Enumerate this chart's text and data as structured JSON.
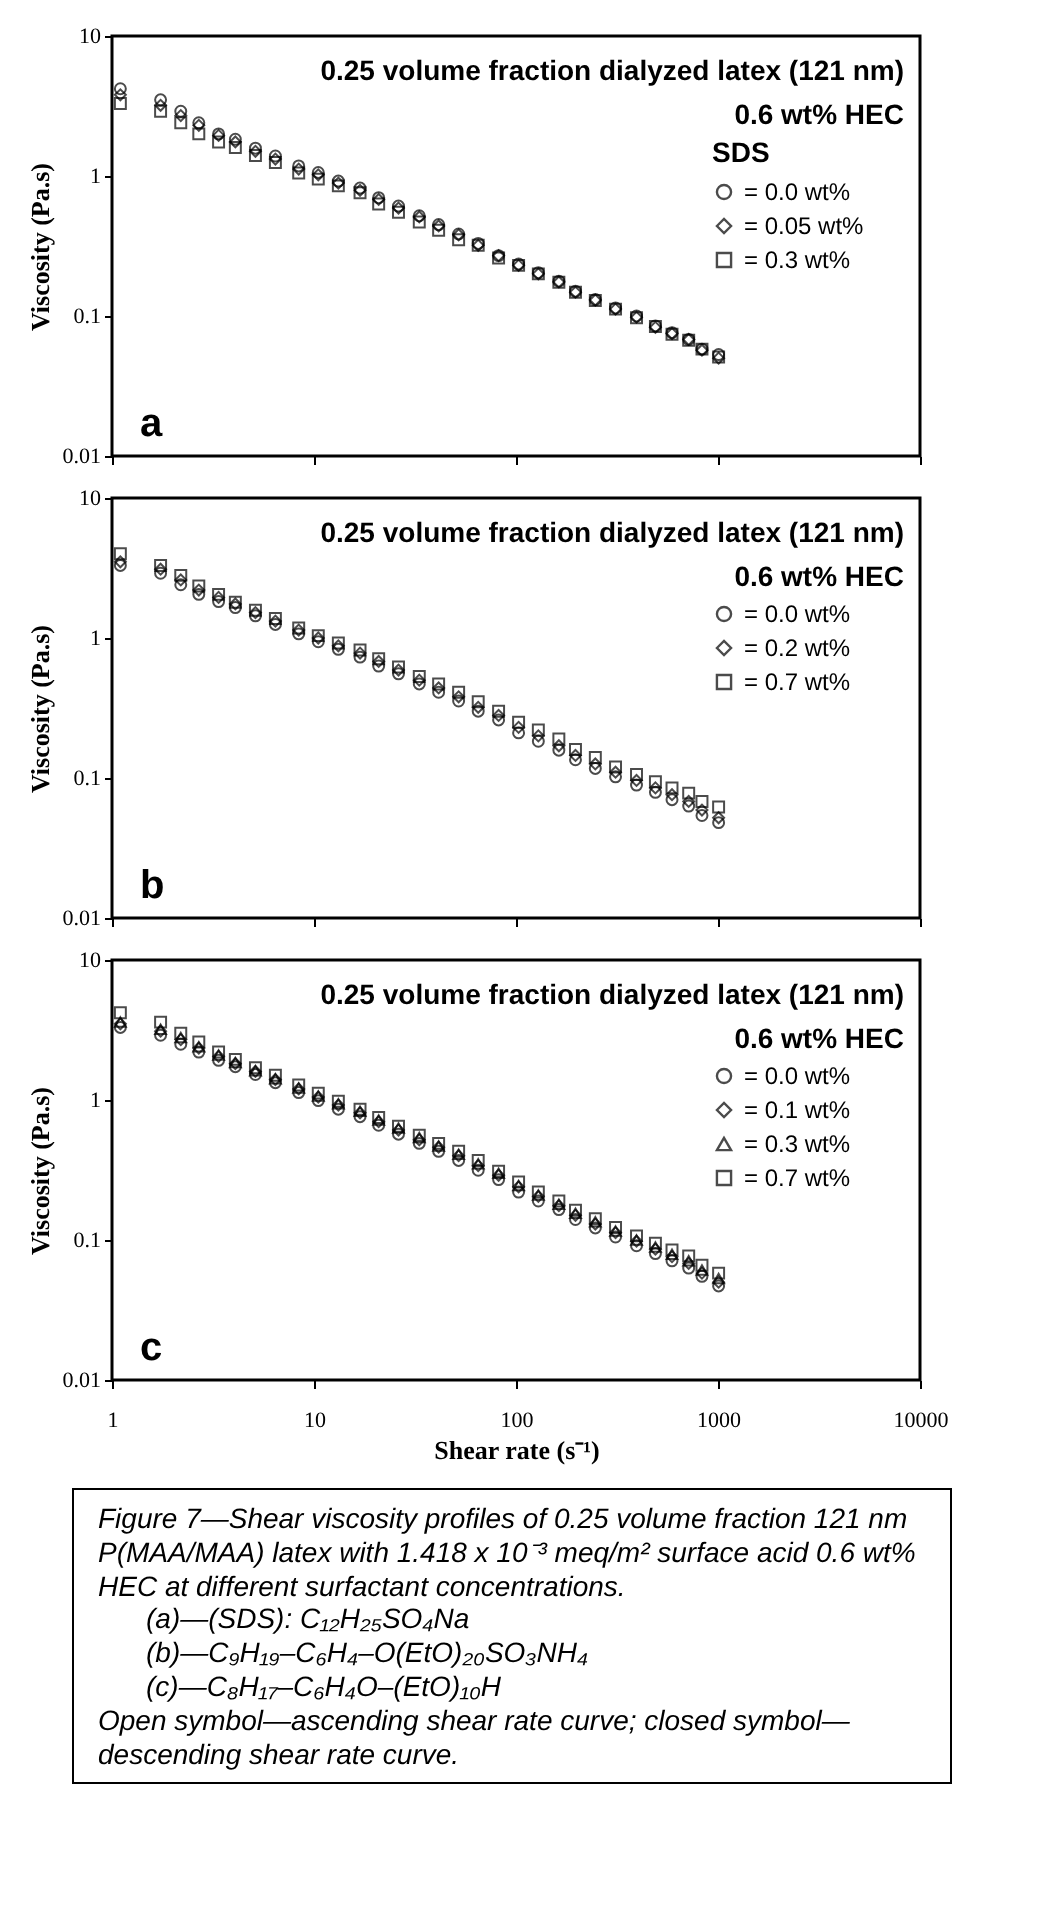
{
  "chart_data": [
    {
      "type": "scatter",
      "title": "0.25 volume fraction dialyzed latex (121 nm)",
      "subtitle": "0.6 wt% HEC",
      "legend_title": "SDS",
      "ylabel": "Viscosity (Pa.s)",
      "annotations": [
        "a"
      ],
      "log": "xy",
      "grid": false,
      "legend": "top right",
      "tick_labels": "y",
      "xlim": [
        1,
        10000
      ],
      "xticks": [
        1,
        10,
        100,
        1000,
        10000
      ],
      "ylim": [
        0.01,
        10
      ],
      "yticks": [
        0.01,
        0.1,
        1,
        10
      ],
      "x": [
        1.1,
        1.74,
        2.19,
        2.69,
        3.37,
        4.08,
        5.13,
        6.44,
        8.4,
        10.5,
        13.2,
        16.9,
        20.9,
        26.2,
        33.2,
        41.4,
        52,
        65,
        82,
        103,
        129,
        163,
        197,
        247,
        311,
        395,
        490,
        592,
        716,
        833,
        1007
      ],
      "series": [
        {
          "name": "= 0.0 wt%",
          "color": "#000000",
          "marker": "circle",
          "values": [
            4.2,
            3.5,
            2.9,
            2.4,
            2.0,
            1.83,
            1.58,
            1.39,
            1.18,
            1.06,
            0.92,
            0.82,
            0.7,
            0.61,
            0.52,
            0.45,
            0.385,
            0.33,
            0.27,
            0.235,
            0.204,
            0.177,
            0.15,
            0.131,
            0.114,
            0.1,
            0.085,
            0.076,
            0.068,
            0.058,
            0.053
          ]
        },
        {
          "name": "= 0.05 wt%",
          "color": "#000000",
          "marker": "diamond",
          "values": [
            3.8,
            3.2,
            2.7,
            2.3,
            1.95,
            1.75,
            1.5,
            1.32,
            1.12,
            1.02,
            0.89,
            0.79,
            0.68,
            0.59,
            0.51,
            0.44,
            0.38,
            0.32,
            0.27,
            0.23,
            0.2,
            0.175,
            0.148,
            0.13,
            0.112,
            0.098,
            0.083,
            0.075,
            0.068,
            0.057,
            0.05
          ]
        },
        {
          "name": "= 0.3 wt%",
          "color": "#000000",
          "marker": "square",
          "values": [
            3.3,
            2.9,
            2.4,
            2.0,
            1.75,
            1.6,
            1.4,
            1.25,
            1.05,
            0.95,
            0.85,
            0.76,
            0.63,
            0.55,
            0.47,
            0.41,
            0.35,
            0.32,
            0.26,
            0.23,
            0.2,
            0.174,
            0.148,
            0.129,
            0.112,
            0.097,
            0.084,
            0.074,
            0.067,
            0.058,
            0.051
          ]
        }
      ]
    },
    {
      "type": "scatter",
      "title": "0.25 volume fraction dialyzed latex (121 nm)",
      "subtitle": "0.6 wt% HEC",
      "ylabel": "Viscosity (Pa.s)",
      "annotations": [
        "b"
      ],
      "log": "xy",
      "grid": false,
      "legend": "top right",
      "tick_labels": "y",
      "xlim": [
        1,
        10000
      ],
      "xticks": [
        1,
        10,
        100,
        1000,
        10000
      ],
      "ylim": [
        0.01,
        10
      ],
      "yticks": [
        0.01,
        0.1,
        1,
        10
      ],
      "x": [
        1.1,
        1.74,
        2.19,
        2.69,
        3.37,
        4.08,
        5.13,
        6.44,
        8.4,
        10.5,
        13.2,
        16.9,
        20.9,
        26.2,
        33.2,
        41.4,
        52,
        65,
        82,
        103,
        129,
        163,
        197,
        247,
        311,
        395,
        490,
        592,
        716,
        833,
        1007
      ],
      "series": [
        {
          "name": "= 0.0 wt%",
          "color": "#000000",
          "marker": "circle",
          "values": [
            3.3,
            2.9,
            2.4,
            2.05,
            1.82,
            1.65,
            1.44,
            1.25,
            1.07,
            0.94,
            0.83,
            0.73,
            0.63,
            0.555,
            0.47,
            0.41,
            0.355,
            0.3,
            0.26,
            0.21,
            0.183,
            0.158,
            0.135,
            0.117,
            0.102,
            0.089,
            0.079,
            0.07,
            0.063,
            0.054,
            0.048
          ]
        },
        {
          "name": "= 0.2 wt%",
          "color": "#000000",
          "marker": "diamond",
          "values": [
            3.5,
            3.1,
            2.6,
            2.2,
            1.95,
            1.75,
            1.52,
            1.32,
            1.14,
            1.0,
            0.88,
            0.78,
            0.68,
            0.59,
            0.5,
            0.44,
            0.38,
            0.32,
            0.28,
            0.23,
            0.2,
            0.17,
            0.145,
            0.126,
            0.11,
            0.096,
            0.085,
            0.076,
            0.068,
            0.059,
            0.052
          ]
        },
        {
          "name": "= 0.7 wt%",
          "color": "#000000",
          "marker": "square",
          "values": [
            4.0,
            3.3,
            2.8,
            2.35,
            2.05,
            1.8,
            1.58,
            1.38,
            1.18,
            1.04,
            0.92,
            0.82,
            0.71,
            0.62,
            0.53,
            0.47,
            0.41,
            0.35,
            0.3,
            0.25,
            0.22,
            0.19,
            0.16,
            0.14,
            0.12,
            0.106,
            0.094,
            0.085,
            0.078,
            0.068,
            0.062
          ]
        }
      ]
    },
    {
      "type": "scatter",
      "title": "0.25 volume fraction dialyzed latex (121 nm)",
      "subtitle": "0.6 wt% HEC",
      "ylabel": "Viscosity (Pa.s)",
      "xlabel": "Shear rate (s⁻¹)",
      "annotations": [
        "c",
        "Figure 7—Shear viscosity profiles of 0.25 volume fraction 121 nm P(MAA/MAA) latex with 1.418 x 10⁻³ meq/m² surface acid 0.6 wt% HEC at different surfactant concentrations.",
        "(a)—(SDS): C₁₂H₂₅SO₄Na",
        "(b)—C₉H₁₉–C₆H₄–O(EtO)₂₀SO₃NH₄",
        "(c)—C₈H₁₇–C₆H₄O–(EtO)₁₀H",
        "Open symbol—ascending shear rate curve; closed symbol—descending shear rate curve."
      ],
      "log": "xy",
      "grid": false,
      "legend": "top right",
      "xlim": [
        1,
        10000
      ],
      "xticks": [
        1,
        10,
        100,
        1000,
        10000
      ],
      "ylim": [
        0.01,
        10
      ],
      "yticks": [
        0.01,
        0.1,
        1,
        10
      ],
      "x": [
        1.1,
        1.74,
        2.19,
        2.69,
        3.37,
        4.08,
        5.13,
        6.44,
        8.4,
        10.5,
        13.2,
        16.9,
        20.9,
        26.2,
        33.2,
        41.4,
        52,
        65,
        82,
        103,
        129,
        163,
        197,
        247,
        311,
        395,
        490,
        592,
        716,
        833,
        1007
      ],
      "series": [
        {
          "name": "= 0.0 wt%",
          "color": "#000000",
          "marker": "circle",
          "values": [
            3.3,
            2.9,
            2.5,
            2.2,
            1.92,
            1.73,
            1.52,
            1.33,
            1.13,
            0.99,
            0.86,
            0.76,
            0.66,
            0.57,
            0.49,
            0.43,
            0.37,
            0.315,
            0.27,
            0.22,
            0.19,
            0.165,
            0.14,
            0.122,
            0.105,
            0.091,
            0.08,
            0.071,
            0.063,
            0.055,
            0.047
          ]
        },
        {
          "name": "= 0.1 wt%",
          "color": "#000000",
          "marker": "diamond",
          "values": [
            3.5,
            3.1,
            2.7,
            2.35,
            2.05,
            1.82,
            1.6,
            1.4,
            1.2,
            1.05,
            0.92,
            0.81,
            0.7,
            0.61,
            0.52,
            0.46,
            0.4,
            0.34,
            0.29,
            0.24,
            0.205,
            0.176,
            0.15,
            0.13,
            0.113,
            0.098,
            0.086,
            0.076,
            0.068,
            0.058,
            0.05
          ]
        },
        {
          "name": "= 0.3 wt%",
          "color": "#000000",
          "marker": "triangle",
          "values": [
            3.6,
            3.2,
            2.8,
            2.4,
            2.1,
            1.85,
            1.62,
            1.42,
            1.22,
            1.07,
            0.94,
            0.83,
            0.72,
            0.63,
            0.54,
            0.47,
            0.41,
            0.35,
            0.3,
            0.245,
            0.21,
            0.18,
            0.155,
            0.135,
            0.116,
            0.1,
            0.089,
            0.079,
            0.071,
            0.061,
            0.053
          ]
        },
        {
          "name": "= 0.7 wt%",
          "color": "#000000",
          "marker": "square",
          "values": [
            4.2,
            3.6,
            3.0,
            2.6,
            2.2,
            1.95,
            1.7,
            1.5,
            1.28,
            1.12,
            0.98,
            0.86,
            0.75,
            0.65,
            0.56,
            0.49,
            0.43,
            0.37,
            0.31,
            0.26,
            0.22,
            0.19,
            0.163,
            0.142,
            0.123,
            0.107,
            0.095,
            0.085,
            0.077,
            0.066,
            0.058
          ]
        }
      ]
    }
  ]
}
